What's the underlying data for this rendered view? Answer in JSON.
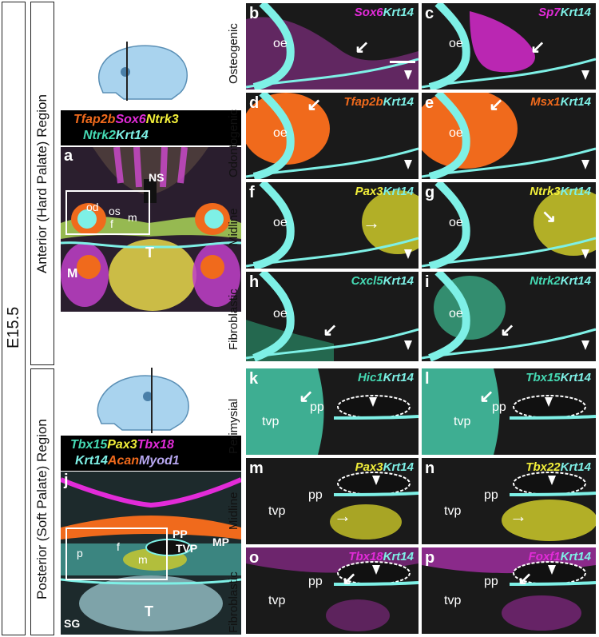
{
  "stage": "E15.5",
  "regions": {
    "anterior": "Anterior (Hard Palate) Region",
    "posterior": "Posterior (Soft Palate) Region"
  },
  "row_labels": {
    "osteogenic": "Osteogenic",
    "odontogenic": "Odontogenic",
    "midline_a": "Midline",
    "fibroblastic_a": "Fibroblastic",
    "perimysial": "Perimysial",
    "midline_p": "Midline",
    "fibroblastic_p": "Fibroblastic"
  },
  "overview_a": {
    "markers_line1": [
      "Tfap2b",
      "Sox6",
      "Ntrk3"
    ],
    "markers_line2": [
      "Ntrk2",
      "Krt14"
    ],
    "letter": "a",
    "labels": {
      "ns": "NS",
      "od": "od",
      "os": "os",
      "f": "f",
      "m": "m",
      "t": "T",
      "mk": "M"
    }
  },
  "overview_j": {
    "markers_line1": [
      "Tbx15",
      "Pax3",
      "Tbx18"
    ],
    "markers_line2": [
      "Krt14",
      "Acan",
      "Myod1"
    ],
    "letter": "j",
    "labels": {
      "pp": "PP",
      "tvp": "TVP",
      "mp": "MP",
      "p": "p",
      "f": "f",
      "m": "m",
      "t": "T",
      "sg": "SG"
    }
  },
  "panels": [
    {
      "letter": "b",
      "gene": "Sox6",
      "reporter": "Krt14",
      "tissue1": "oe"
    },
    {
      "letter": "c",
      "gene": "Sp7",
      "reporter": "Krt14",
      "tissue1": "oe"
    },
    {
      "letter": "d",
      "gene": "Tfap2b",
      "reporter": "Krt14",
      "tissue1": "oe"
    },
    {
      "letter": "e",
      "gene": "Msx1",
      "reporter": "Krt14",
      "tissue1": "oe"
    },
    {
      "letter": "f",
      "gene": "Pax3",
      "reporter": "Krt14",
      "tissue1": "oe"
    },
    {
      "letter": "g",
      "gene": "Ntrk3",
      "reporter": "Krt14",
      "tissue1": "oe"
    },
    {
      "letter": "h",
      "gene": "Cxcl5",
      "reporter": "Krt14",
      "tissue1": "oe"
    },
    {
      "letter": "i",
      "gene": "Ntrk2",
      "reporter": "Krt14",
      "tissue1": "oe"
    },
    {
      "letter": "k",
      "gene": "Hic1",
      "reporter": "Krt14",
      "tissue1": "tvp",
      "tissue2": "pp"
    },
    {
      "letter": "l",
      "gene": "Tbx15",
      "reporter": "Krt14",
      "tissue1": "tvp",
      "tissue2": "pp"
    },
    {
      "letter": "m",
      "gene": "Pax3",
      "reporter": "Krt14",
      "tissue1": "tvp",
      "tissue2": "pp"
    },
    {
      "letter": "n",
      "gene": "Tbx22",
      "reporter": "Krt14",
      "tissue1": "tvp",
      "tissue2": "pp"
    },
    {
      "letter": "o",
      "gene": "Tbx18",
      "reporter": "Krt14",
      "tissue1": "tvp",
      "tissue2": "pp"
    },
    {
      "letter": "p",
      "gene": "Foxf1",
      "reporter": "Krt14",
      "tissue1": "tvp",
      "tissue2": "pp"
    }
  ],
  "colors": {
    "magenta": "#e22bd8",
    "orange": "#f06a1c",
    "yellow": "#f2ef3a",
    "cyan": "#5fe6d0",
    "teal": "#45d9b3",
    "lavender": "#b7a7f0",
    "krt14": "#7ef0e6",
    "head": "#a9d3ee"
  }
}
